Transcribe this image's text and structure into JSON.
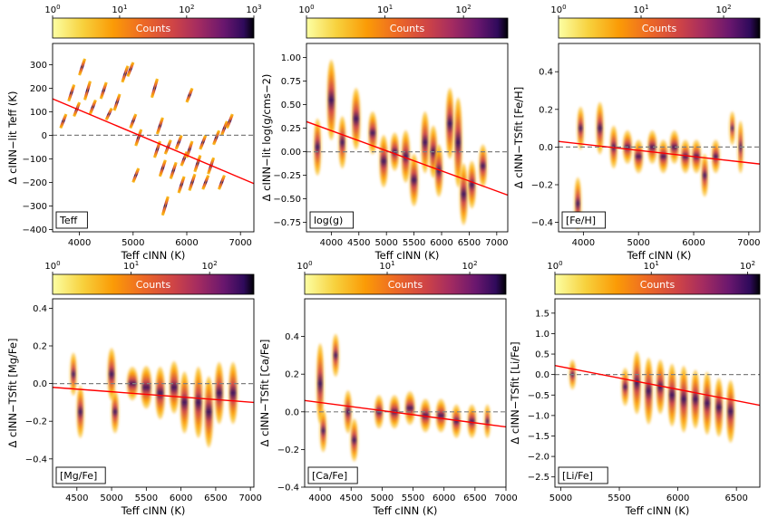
{
  "colorbar": {
    "label": "Counts"
  },
  "chart_data": [
    {
      "type": "heatmap",
      "legend_label": "Teff",
      "ylabel": "Δ cINN−lit Teff (K)",
      "xlabel": "Teff cINN (K)",
      "colorbar": {
        "label": "Counts",
        "scale": "log",
        "range": [
          1,
          1000
        ],
        "tick_exponents": [
          0,
          1,
          2,
          3
        ]
      },
      "xlim": [
        3500,
        7250
      ],
      "ylim": [
        -410,
        390
      ],
      "xticks": [
        4000,
        5000,
        6000,
        7000
      ],
      "yticks": [
        -400,
        -300,
        -200,
        -100,
        0,
        100,
        200,
        300
      ],
      "ytick_labels": [
        "−400",
        "−300",
        "−200",
        "−100",
        "0",
        "100",
        "200",
        "300"
      ],
      "zero_line": 0,
      "fit_line": {
        "x": [
          3500,
          7250
        ],
        "y": [
          155,
          -205
        ]
      },
      "clusters": [
        {
          "x": 3700,
          "y": 60,
          "h": 60
        },
        {
          "x": 3850,
          "y": 180,
          "h": 70
        },
        {
          "x": 3950,
          "y": 110,
          "h": 60
        },
        {
          "x": 4050,
          "y": 290,
          "h": 70
        },
        {
          "x": 4150,
          "y": 190,
          "h": 80
        },
        {
          "x": 4250,
          "y": 120,
          "h": 60
        },
        {
          "x": 4450,
          "y": 190,
          "h": 70
        },
        {
          "x": 4550,
          "y": 90,
          "h": 50
        },
        {
          "x": 4700,
          "y": 140,
          "h": 70
        },
        {
          "x": 4850,
          "y": 260,
          "h": 70
        },
        {
          "x": 4950,
          "y": 280,
          "h": 60
        },
        {
          "x": 5000,
          "y": 60,
          "h": 60
        },
        {
          "x": 5050,
          "y": -170,
          "h": 60
        },
        {
          "x": 5100,
          "y": -10,
          "h": 70
        },
        {
          "x": 5400,
          "y": 200,
          "h": 80
        },
        {
          "x": 5450,
          "y": -60,
          "h": 70
        },
        {
          "x": 5500,
          "y": 40,
          "h": 70
        },
        {
          "x": 5550,
          "y": -140,
          "h": 70
        },
        {
          "x": 5600,
          "y": -300,
          "h": 80
        },
        {
          "x": 5650,
          "y": -50,
          "h": 60
        },
        {
          "x": 5750,
          "y": -150,
          "h": 70
        },
        {
          "x": 5850,
          "y": -30,
          "h": 60
        },
        {
          "x": 5900,
          "y": -210,
          "h": 70
        },
        {
          "x": 5950,
          "y": -100,
          "h": 60
        },
        {
          "x": 6050,
          "y": 170,
          "h": 60
        },
        {
          "x": 6050,
          "y": -60,
          "h": 70
        },
        {
          "x": 6100,
          "y": -200,
          "h": 70
        },
        {
          "x": 6200,
          "y": -120,
          "h": 70
        },
        {
          "x": 6300,
          "y": -30,
          "h": 60
        },
        {
          "x": 6350,
          "y": -200,
          "h": 60
        },
        {
          "x": 6450,
          "y": -130,
          "h": 70
        },
        {
          "x": 6550,
          "y": -10,
          "h": 60
        },
        {
          "x": 6650,
          "y": -200,
          "h": 60
        },
        {
          "x": 6700,
          "y": 30,
          "h": 60
        },
        {
          "x": 6800,
          "y": 60,
          "h": 60
        }
      ]
    },
    {
      "type": "heatmap",
      "legend_label": "log(g)",
      "ylabel": "Δ cINN−lit log(g/cms−2)",
      "xlabel": "Teff cINN (K)",
      "colorbar": {
        "label": "Counts",
        "scale": "log",
        "range": [
          1,
          400
        ],
        "tick_exponents": [
          0,
          1,
          2
        ]
      },
      "xlim": [
        3550,
        7200
      ],
      "ylim": [
        -0.85,
        1.15
      ],
      "xticks": [
        4000,
        4500,
        5000,
        5500,
        6000,
        6500,
        7000
      ],
      "yticks": [
        -0.75,
        -0.5,
        -0.25,
        0.0,
        0.25,
        0.5,
        0.75,
        1.0
      ],
      "ytick_labels": [
        "−0.75",
        "−0.50",
        "−0.25",
        "0.00",
        "0.25",
        "0.50",
        "0.75",
        "1.00"
      ],
      "zero_line": 0,
      "fit_line": {
        "x": [
          3550,
          7200
        ],
        "y": [
          0.32,
          -0.46
        ]
      },
      "clusters": [
        {
          "x": 3750,
          "y": 0.05,
          "h": 0.55,
          "w": 90
        },
        {
          "x": 4000,
          "y": 0.55,
          "h": 0.8,
          "w": 110
        },
        {
          "x": 4200,
          "y": 0.1,
          "h": 0.5,
          "w": 90
        },
        {
          "x": 4450,
          "y": 0.35,
          "h": 0.6,
          "w": 110
        },
        {
          "x": 4750,
          "y": 0.2,
          "h": 0.4,
          "w": 110
        },
        {
          "x": 4950,
          "y": -0.1,
          "h": 0.5,
          "w": 110
        },
        {
          "x": 5150,
          "y": 0.0,
          "h": 0.35,
          "w": 110
        },
        {
          "x": 5350,
          "y": -0.05,
          "h": 0.5,
          "w": 110
        },
        {
          "x": 5500,
          "y": -0.3,
          "h": 0.5,
          "w": 110
        },
        {
          "x": 5700,
          "y": 0.1,
          "h": 0.6,
          "w": 100
        },
        {
          "x": 5850,
          "y": 0.0,
          "h": 0.5,
          "w": 100
        },
        {
          "x": 5950,
          "y": -0.2,
          "h": 0.5,
          "w": 100
        },
        {
          "x": 6150,
          "y": 0.3,
          "h": 0.7,
          "w": 100
        },
        {
          "x": 6300,
          "y": 0.1,
          "h": 0.9,
          "w": 100
        },
        {
          "x": 6400,
          "y": -0.45,
          "h": 0.6,
          "w": 100
        },
        {
          "x": 6550,
          "y": -0.35,
          "h": 0.45,
          "w": 100
        },
        {
          "x": 6750,
          "y": -0.15,
          "h": 0.4,
          "w": 100
        }
      ]
    },
    {
      "type": "heatmap",
      "legend_label": "[Fe/H]",
      "ylabel": "Δ cINN−TSfit [Fe/H]",
      "xlabel": "Teff cINN (K)",
      "colorbar": {
        "label": "Counts",
        "scale": "log",
        "range": [
          1,
          300
        ],
        "tick_exponents": [
          0,
          1,
          2
        ]
      },
      "xlim": [
        3550,
        7200
      ],
      "ylim": [
        -0.45,
        0.55
      ],
      "xticks": [
        4000,
        5000,
        6000,
        7000
      ],
      "yticks": [
        -0.4,
        -0.2,
        0.0,
        0.2,
        0.4
      ],
      "ytick_labels": [
        "−0.4",
        "−0.2",
        "0.0",
        "0.2",
        "0.4"
      ],
      "zero_line": 0,
      "fit_line": {
        "x": [
          3550,
          7200
        ],
        "y": [
          0.03,
          -0.09
        ]
      },
      "clusters": [
        {
          "x": 3900,
          "y": -0.3,
          "h": 0.25,
          "w": 80
        },
        {
          "x": 3950,
          "y": 0.1,
          "h": 0.2,
          "w": 80
        },
        {
          "x": 4300,
          "y": 0.1,
          "h": 0.25,
          "w": 90
        },
        {
          "x": 4550,
          "y": 0.0,
          "h": 0.2,
          "w": 90
        },
        {
          "x": 4800,
          "y": 0.0,
          "h": 0.15,
          "w": 120
        },
        {
          "x": 5000,
          "y": -0.05,
          "h": 0.15,
          "w": 120
        },
        {
          "x": 5250,
          "y": 0.0,
          "h": 0.15,
          "w": 120
        },
        {
          "x": 5450,
          "y": -0.05,
          "h": 0.15,
          "w": 120
        },
        {
          "x": 5650,
          "y": 0.0,
          "h": 0.15,
          "w": 120
        },
        {
          "x": 5850,
          "y": -0.05,
          "h": 0.15,
          "w": 120
        },
        {
          "x": 6050,
          "y": -0.05,
          "h": 0.15,
          "w": 120
        },
        {
          "x": 6200,
          "y": -0.15,
          "h": 0.2,
          "w": 80
        },
        {
          "x": 6400,
          "y": -0.05,
          "h": 0.15,
          "w": 100
        },
        {
          "x": 6700,
          "y": 0.1,
          "h": 0.15,
          "w": 60
        },
        {
          "x": 6850,
          "y": 0.0,
          "h": 0.25,
          "w": 60
        }
      ]
    },
    {
      "type": "heatmap",
      "legend_label": "[Mg/Fe]",
      "ylabel": "Δ cINN−TSfit [Mg/Fe]",
      "xlabel": "Teff cINN (K)",
      "colorbar": {
        "label": "Counts",
        "scale": "log",
        "range": [
          1,
          400
        ],
        "tick_exponents": [
          0,
          1,
          2
        ]
      },
      "xlim": [
        4150,
        7050
      ],
      "ylim": [
        -0.55,
        0.45
      ],
      "xticks": [
        4500,
        5000,
        5500,
        6000,
        6500,
        7000
      ],
      "yticks": [
        -0.4,
        -0.2,
        0.0,
        0.2,
        0.4
      ],
      "ytick_labels": [
        "−0.4",
        "−0.2",
        "0.0",
        "0.2",
        "0.4"
      ],
      "zero_line": 0,
      "fit_line": {
        "x": [
          4150,
          7050
        ],
        "y": [
          -0.02,
          -0.1
        ]
      },
      "clusters": [
        {
          "x": 4450,
          "y": 0.05,
          "h": 0.2,
          "w": 60
        },
        {
          "x": 4550,
          "y": -0.15,
          "h": 0.25,
          "w": 70
        },
        {
          "x": 5000,
          "y": 0.05,
          "h": 0.25,
          "w": 80
        },
        {
          "x": 5050,
          "y": -0.15,
          "h": 0.2,
          "w": 70
        },
        {
          "x": 5300,
          "y": 0.0,
          "h": 0.15,
          "w": 120
        },
        {
          "x": 5500,
          "y": -0.02,
          "h": 0.2,
          "w": 120
        },
        {
          "x": 5700,
          "y": -0.05,
          "h": 0.25,
          "w": 100
        },
        {
          "x": 5900,
          "y": -0.02,
          "h": 0.25,
          "w": 100
        },
        {
          "x": 6050,
          "y": -0.1,
          "h": 0.3,
          "w": 90
        },
        {
          "x": 6250,
          "y": -0.1,
          "h": 0.35,
          "w": 90
        },
        {
          "x": 6400,
          "y": -0.15,
          "h": 0.35,
          "w": 90
        },
        {
          "x": 6550,
          "y": -0.05,
          "h": 0.3,
          "w": 90
        },
        {
          "x": 6750,
          "y": -0.05,
          "h": 0.3,
          "w": 90
        }
      ]
    },
    {
      "type": "heatmap",
      "legend_label": "[Ca/Fe]",
      "ylabel": "Δ cINN−TSfit [Ca/Fe]",
      "xlabel": "Teff cINN (K)",
      "colorbar": {
        "label": "Counts",
        "scale": "log",
        "range": [
          1,
          300
        ],
        "tick_exponents": [
          0,
          1,
          2
        ]
      },
      "xlim": [
        3750,
        7000
      ],
      "ylim": [
        -0.4,
        0.6
      ],
      "xticks": [
        4000,
        4500,
        5000,
        5500,
        6000,
        6500,
        7000
      ],
      "yticks": [
        -0.4,
        -0.2,
        0.0,
        0.2,
        0.4
      ],
      "ytick_labels": [
        "−0.4",
        "−0.2",
        "0.0",
        "0.2",
        "0.4"
      ],
      "zero_line": 0,
      "fit_line": {
        "x": [
          3750,
          7000
        ],
        "y": [
          0.06,
          -0.08
        ]
      },
      "clusters": [
        {
          "x": 4000,
          "y": 0.15,
          "h": 0.4,
          "w": 80
        },
        {
          "x": 4050,
          "y": -0.1,
          "h": 0.2,
          "w": 70
        },
        {
          "x": 4250,
          "y": 0.3,
          "h": 0.2,
          "w": 70
        },
        {
          "x": 4450,
          "y": 0.0,
          "h": 0.2,
          "w": 80
        },
        {
          "x": 4550,
          "y": -0.15,
          "h": 0.2,
          "w": 80
        },
        {
          "x": 4950,
          "y": 0.0,
          "h": 0.15,
          "w": 100
        },
        {
          "x": 5200,
          "y": 0.0,
          "h": 0.15,
          "w": 120
        },
        {
          "x": 5450,
          "y": 0.02,
          "h": 0.15,
          "w": 120
        },
        {
          "x": 5700,
          "y": -0.02,
          "h": 0.15,
          "w": 120
        },
        {
          "x": 5950,
          "y": -0.02,
          "h": 0.15,
          "w": 120
        },
        {
          "x": 6200,
          "y": -0.05,
          "h": 0.15,
          "w": 100
        },
        {
          "x": 6450,
          "y": -0.05,
          "h": 0.15,
          "w": 100
        },
        {
          "x": 6700,
          "y": -0.05,
          "h": 0.15,
          "w": 60
        }
      ]
    },
    {
      "type": "heatmap",
      "legend_label": "[Li/Fe]",
      "ylabel": "Δ cINN−TSfit [Li/Fe]",
      "xlabel": "Teff cINN (K)",
      "colorbar": {
        "label": "Counts",
        "scale": "log",
        "range": [
          1,
          150
        ],
        "tick_exponents": [
          0,
          1,
          2
        ]
      },
      "xlim": [
        4950,
        6700
      ],
      "ylim": [
        -2.75,
        1.85
      ],
      "xticks": [
        5000,
        5500,
        6000,
        6500
      ],
      "yticks": [
        -2.5,
        -2.0,
        -1.5,
        -1.0,
        -0.5,
        0.0,
        0.5,
        1.0,
        1.5
      ],
      "ytick_labels": [
        "−2.5",
        "−2.0",
        "−1.5",
        "−1.0",
        "−0.5",
        "0.0",
        "0.5",
        "1.0",
        "1.5"
      ],
      "zero_line": 0,
      "fit_line": {
        "x": [
          4950,
          6700
        ],
        "y": [
          0.22,
          -0.75
        ]
      },
      "clusters": [
        {
          "x": 5100,
          "y": 0.0,
          "h": 0.6,
          "w": 35
        },
        {
          "x": 5550,
          "y": -0.3,
          "h": 0.8,
          "w": 40
        },
        {
          "x": 5650,
          "y": -0.2,
          "h": 1.4,
          "w": 50
        },
        {
          "x": 5750,
          "y": -0.4,
          "h": 1.5,
          "w": 50
        },
        {
          "x": 5850,
          "y": -0.3,
          "h": 1.2,
          "w": 50
        },
        {
          "x": 5950,
          "y": -0.5,
          "h": 1.4,
          "w": 50
        },
        {
          "x": 6050,
          "y": -0.6,
          "h": 1.5,
          "w": 50
        },
        {
          "x": 6150,
          "y": -0.6,
          "h": 1.3,
          "w": 50
        },
        {
          "x": 6250,
          "y": -0.7,
          "h": 1.4,
          "w": 50
        },
        {
          "x": 6350,
          "y": -0.8,
          "h": 1.3,
          "w": 50
        },
        {
          "x": 6450,
          "y": -0.9,
          "h": 1.4,
          "w": 50
        }
      ]
    }
  ]
}
